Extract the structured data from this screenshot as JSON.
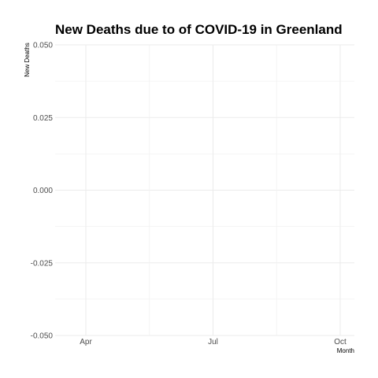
{
  "chart_data": {
    "type": "line",
    "title": "New Deaths due to of COVID-19 in Greenland",
    "xlabel": "Month",
    "ylabel": "New Deaths",
    "x_tick_labels": [
      "Apr",
      "Jul",
      "Oct"
    ],
    "y_tick_labels": [
      "0.050",
      "0.025",
      "0.000",
      "-0.025",
      "-0.050"
    ],
    "ylim": [
      -0.05,
      0.05
    ],
    "series": [],
    "grid": true,
    "legend": "none"
  }
}
